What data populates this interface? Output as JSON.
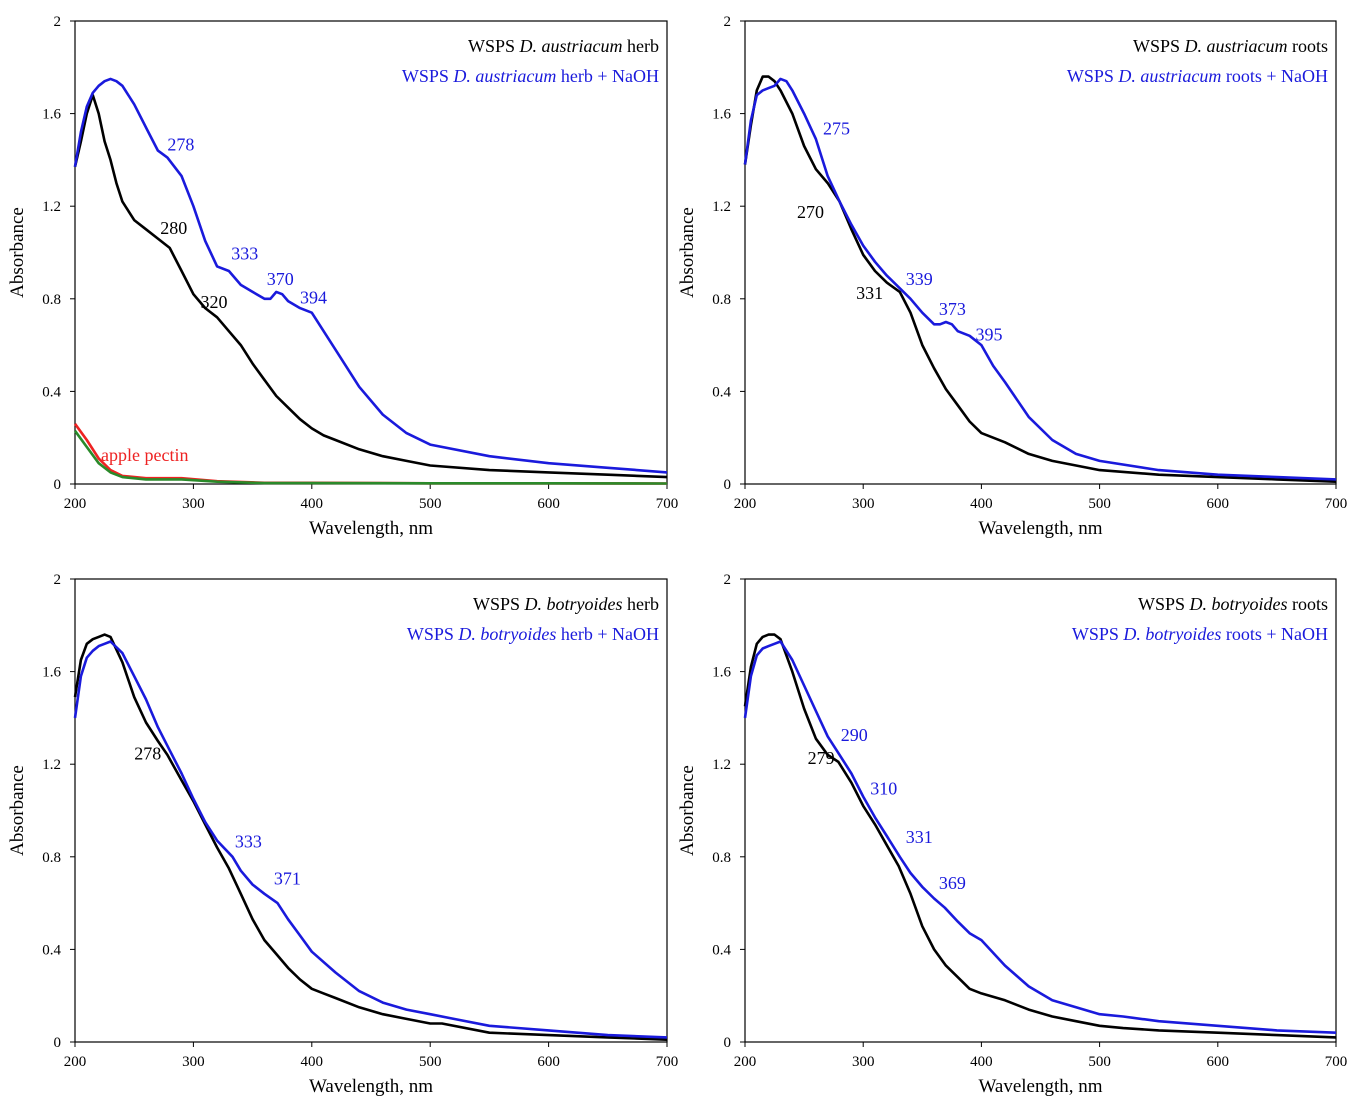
{
  "chart_data": [
    {
      "type": "line",
      "xlabel": "Wavelength, nm",
      "ylabel": "Absorbance",
      "xlim": [
        200,
        700
      ],
      "ylim": [
        0,
        2
      ],
      "xticks": [
        "200",
        "300",
        "400",
        "500",
        "600",
        "700"
      ],
      "yticks": [
        "0",
        "0.4",
        "0.8",
        "1.2",
        "1.6",
        "2"
      ],
      "legend": {
        "placement": "top-right",
        "entries": [
          {
            "prefix": "WSPS ",
            "italic": "D. austriacum",
            "suffix": " herb",
            "color": "#000000"
          },
          {
            "prefix": "WSPS ",
            "italic": "D. austriacum",
            "suffix": " herb + NaOH",
            "color": "#1a1adc"
          }
        ]
      },
      "series": [
        {
          "name": "WSPS D. austriacum herb",
          "color": "#000000",
          "x": [
            200,
            205,
            210,
            215,
            220,
            225,
            230,
            235,
            240,
            250,
            260,
            270,
            280,
            290,
            300,
            310,
            320,
            330,
            340,
            350,
            360,
            370,
            380,
            390,
            400,
            410,
            420,
            440,
            460,
            480,
            500,
            550,
            600,
            650,
            700
          ],
          "y": [
            1.37,
            1.48,
            1.6,
            1.68,
            1.6,
            1.48,
            1.4,
            1.3,
            1.22,
            1.14,
            1.1,
            1.06,
            1.02,
            0.92,
            0.82,
            0.76,
            0.72,
            0.66,
            0.6,
            0.52,
            0.45,
            0.38,
            0.33,
            0.28,
            0.24,
            0.21,
            0.19,
            0.15,
            0.12,
            0.1,
            0.08,
            0.06,
            0.05,
            0.04,
            0.03
          ]
        },
        {
          "name": "WSPS D. austriacum herb + NaOH",
          "color": "#1a1adc",
          "x": [
            200,
            205,
            210,
            215,
            220,
            225,
            230,
            235,
            240,
            250,
            260,
            270,
            278,
            290,
            300,
            310,
            320,
            330,
            340,
            350,
            360,
            365,
            370,
            375,
            380,
            390,
            400,
            420,
            440,
            460,
            480,
            500,
            550,
            600,
            650,
            700
          ],
          "y": [
            1.37,
            1.52,
            1.63,
            1.69,
            1.72,
            1.74,
            1.75,
            1.74,
            1.72,
            1.64,
            1.54,
            1.44,
            1.41,
            1.33,
            1.2,
            1.05,
            0.94,
            0.92,
            0.86,
            0.83,
            0.8,
            0.8,
            0.83,
            0.82,
            0.79,
            0.76,
            0.74,
            0.58,
            0.42,
            0.3,
            0.22,
            0.17,
            0.12,
            0.09,
            0.07,
            0.05
          ]
        },
        {
          "name": "apple pectin",
          "color": "#ee2222",
          "x": [
            200,
            210,
            220,
            230,
            240,
            260,
            290,
            320,
            360,
            400,
            500,
            600,
            700
          ],
          "y": [
            0.26,
            0.19,
            0.11,
            0.06,
            0.035,
            0.025,
            0.025,
            0.012,
            0.005,
            0.005,
            0.003,
            0.003,
            0.002
          ]
        },
        {
          "name": "",
          "color": "#2a8a2a",
          "x": [
            200,
            210,
            220,
            230,
            240,
            260,
            290,
            320,
            360,
            400,
            500,
            600,
            700
          ],
          "y": [
            0.23,
            0.16,
            0.09,
            0.05,
            0.03,
            0.02,
            0.02,
            0.01,
            0.004,
            0.004,
            0.003,
            0.003,
            0.002
          ]
        }
      ],
      "annotations": [
        {
          "text": "apple pectin",
          "x": 222,
          "y": 0.1,
          "color": "#ee2222"
        },
        {
          "text": "278",
          "x": 278,
          "y": 1.44,
          "color": "#1a1adc"
        },
        {
          "text": "280",
          "x": 272,
          "y": 1.08,
          "color": "#000000"
        },
        {
          "text": "333",
          "x": 332,
          "y": 0.97,
          "color": "#1a1adc"
        },
        {
          "text": "370",
          "x": 362,
          "y": 0.86,
          "color": "#1a1adc"
        },
        {
          "text": "320",
          "x": 306,
          "y": 0.76,
          "color": "#000000"
        },
        {
          "text": "394",
          "x": 390,
          "y": 0.78,
          "color": "#1a1adc"
        }
      ]
    },
    {
      "type": "line",
      "xlabel": "Wavelength, nm",
      "ylabel": "Absorbance",
      "xlim": [
        200,
        700
      ],
      "ylim": [
        0,
        2
      ],
      "xticks": [
        "200",
        "300",
        "400",
        "500",
        "600",
        "700"
      ],
      "yticks": [
        "0",
        "0.4",
        "0.8",
        "1.2",
        "1.6",
        "2"
      ],
      "legend": {
        "placement": "top-right",
        "entries": [
          {
            "prefix": "WSPS ",
            "italic": "D. austriacum",
            "suffix": " roots",
            "color": "#000000"
          },
          {
            "prefix": "WSPS ",
            "italic": "D. austriacum",
            "suffix": " roots + NaOH",
            "color": "#1a1adc"
          }
        ]
      },
      "series": [
        {
          "name": "WSPS D. austriacum roots",
          "color": "#000000",
          "x": [
            200,
            205,
            210,
            215,
            220,
            225,
            230,
            240,
            250,
            260,
            270,
            280,
            290,
            300,
            310,
            320,
            331,
            340,
            350,
            360,
            370,
            380,
            390,
            400,
            410,
            420,
            440,
            460,
            480,
            500,
            550,
            600,
            650,
            700
          ],
          "y": [
            1.38,
            1.55,
            1.7,
            1.76,
            1.76,
            1.74,
            1.7,
            1.6,
            1.46,
            1.36,
            1.3,
            1.22,
            1.1,
            0.99,
            0.92,
            0.87,
            0.83,
            0.74,
            0.6,
            0.5,
            0.41,
            0.34,
            0.27,
            0.22,
            0.2,
            0.18,
            0.13,
            0.1,
            0.08,
            0.06,
            0.04,
            0.03,
            0.02,
            0.01
          ]
        },
        {
          "name": "WSPS D. austriacum roots + NaOH",
          "color": "#1a1adc",
          "x": [
            200,
            205,
            210,
            215,
            220,
            225,
            230,
            235,
            240,
            250,
            260,
            270,
            280,
            290,
            300,
            310,
            320,
            330,
            340,
            350,
            360,
            365,
            370,
            375,
            380,
            390,
            400,
            410,
            420,
            440,
            460,
            480,
            500,
            550,
            600,
            650,
            700
          ],
          "y": [
            1.38,
            1.57,
            1.68,
            1.7,
            1.71,
            1.72,
            1.75,
            1.74,
            1.7,
            1.6,
            1.49,
            1.33,
            1.22,
            1.12,
            1.03,
            0.96,
            0.9,
            0.85,
            0.8,
            0.74,
            0.69,
            0.69,
            0.7,
            0.69,
            0.66,
            0.64,
            0.6,
            0.51,
            0.44,
            0.29,
            0.19,
            0.13,
            0.1,
            0.06,
            0.04,
            0.03,
            0.02
          ]
        }
      ],
      "annotations": [
        {
          "text": "275",
          "x": 266,
          "y": 1.51,
          "color": "#1a1adc"
        },
        {
          "text": "270",
          "x": 244,
          "y": 1.15,
          "color": "#000000"
        },
        {
          "text": "339",
          "x": 336,
          "y": 0.86,
          "color": "#1a1adc"
        },
        {
          "text": "331",
          "x": 294,
          "y": 0.8,
          "color": "#000000"
        },
        {
          "text": "373",
          "x": 364,
          "y": 0.73,
          "color": "#1a1adc"
        },
        {
          "text": "395",
          "x": 395,
          "y": 0.62,
          "color": "#1a1adc"
        }
      ]
    },
    {
      "type": "line",
      "xlabel": "Wavelength, nm",
      "ylabel": "Absorbance",
      "xlim": [
        200,
        700
      ],
      "ylim": [
        0,
        2
      ],
      "xticks": [
        "200",
        "300",
        "400",
        "500",
        "600",
        "700"
      ],
      "yticks": [
        "0",
        "0.4",
        "0.8",
        "1.2",
        "1.6",
        "2"
      ],
      "legend": {
        "placement": "top-right",
        "entries": [
          {
            "prefix": "WSPS ",
            "italic": "D. botryoides",
            "suffix": " herb",
            "color": "#000000"
          },
          {
            "prefix": "WSPS ",
            "italic": "D. botryoides",
            "suffix": " herb + NaOH",
            "color": "#1a1adc"
          }
        ]
      },
      "series": [
        {
          "name": "WSPS D. botryoides herb",
          "color": "#000000",
          "x": [
            200,
            205,
            210,
            215,
            220,
            225,
            230,
            240,
            250,
            260,
            270,
            278,
            290,
            300,
            310,
            320,
            330,
            340,
            350,
            360,
            370,
            380,
            390,
            400,
            410,
            420,
            440,
            460,
            480,
            500,
            510,
            550,
            600,
            650,
            700
          ],
          "y": [
            1.49,
            1.65,
            1.72,
            1.74,
            1.75,
            1.76,
            1.75,
            1.64,
            1.49,
            1.38,
            1.3,
            1.24,
            1.13,
            1.04,
            0.94,
            0.84,
            0.75,
            0.64,
            0.53,
            0.44,
            0.38,
            0.32,
            0.27,
            0.23,
            0.21,
            0.19,
            0.15,
            0.12,
            0.1,
            0.08,
            0.08,
            0.04,
            0.03,
            0.02,
            0.01
          ]
        },
        {
          "name": "WSPS D. botryoides herb + NaOH",
          "color": "#1a1adc",
          "x": [
            200,
            205,
            210,
            215,
            220,
            225,
            230,
            240,
            250,
            260,
            270,
            280,
            290,
            300,
            310,
            320,
            333,
            340,
            350,
            360,
            371,
            380,
            390,
            400,
            420,
            440,
            460,
            480,
            500,
            520,
            550,
            600,
            650,
            700
          ],
          "y": [
            1.4,
            1.58,
            1.66,
            1.69,
            1.71,
            1.72,
            1.73,
            1.68,
            1.58,
            1.48,
            1.36,
            1.26,
            1.16,
            1.05,
            0.95,
            0.87,
            0.8,
            0.74,
            0.68,
            0.64,
            0.6,
            0.53,
            0.46,
            0.39,
            0.3,
            0.22,
            0.17,
            0.14,
            0.12,
            0.1,
            0.07,
            0.05,
            0.03,
            0.02
          ]
        }
      ],
      "annotations": [
        {
          "text": "278",
          "x": 250,
          "y": 1.22,
          "color": "#000000"
        },
        {
          "text": "333",
          "x": 335,
          "y": 0.84,
          "color": "#1a1adc"
        },
        {
          "text": "371",
          "x": 368,
          "y": 0.68,
          "color": "#1a1adc"
        }
      ]
    },
    {
      "type": "line",
      "xlabel": "Wavelength, nm",
      "ylabel": "Absorbance",
      "xlim": [
        200,
        700
      ],
      "ylim": [
        0,
        2
      ],
      "xticks": [
        "200",
        "300",
        "400",
        "500",
        "600",
        "700"
      ],
      "yticks": [
        "0",
        "0.4",
        "0.8",
        "1.2",
        "1.6",
        "2"
      ],
      "legend": {
        "placement": "top-right",
        "entries": [
          {
            "prefix": "WSPS ",
            "italic": "D. botryoides",
            "suffix": " roots",
            "color": "#000000"
          },
          {
            "prefix": "WSPS ",
            "italic": "D. botryoides",
            "suffix": " roots + NaOH",
            "color": "#1a1adc"
          }
        ]
      },
      "series": [
        {
          "name": "WSPS D. botryoides roots",
          "color": "#000000",
          "x": [
            200,
            205,
            210,
            215,
            220,
            225,
            230,
            240,
            250,
            260,
            270,
            279,
            290,
            300,
            310,
            320,
            330,
            340,
            350,
            360,
            370,
            380,
            390,
            400,
            420,
            440,
            460,
            480,
            500,
            520,
            550,
            600,
            650,
            700
          ],
          "y": [
            1.45,
            1.62,
            1.72,
            1.75,
            1.76,
            1.76,
            1.74,
            1.6,
            1.44,
            1.31,
            1.24,
            1.21,
            1.12,
            1.02,
            0.94,
            0.85,
            0.76,
            0.64,
            0.5,
            0.4,
            0.33,
            0.28,
            0.23,
            0.21,
            0.18,
            0.14,
            0.11,
            0.09,
            0.07,
            0.06,
            0.05,
            0.04,
            0.03,
            0.02
          ]
        },
        {
          "name": "WSPS D. botryoides roots + NaOH",
          "color": "#1a1adc",
          "x": [
            200,
            205,
            210,
            215,
            220,
            225,
            230,
            240,
            250,
            260,
            270,
            280,
            290,
            300,
            310,
            320,
            331,
            340,
            350,
            360,
            369,
            380,
            390,
            400,
            420,
            440,
            460,
            480,
            500,
            520,
            550,
            600,
            650,
            700
          ],
          "y": [
            1.4,
            1.58,
            1.67,
            1.7,
            1.71,
            1.72,
            1.73,
            1.65,
            1.54,
            1.43,
            1.32,
            1.24,
            1.16,
            1.06,
            0.97,
            0.89,
            0.8,
            0.73,
            0.67,
            0.62,
            0.58,
            0.52,
            0.47,
            0.44,
            0.33,
            0.24,
            0.18,
            0.15,
            0.12,
            0.11,
            0.09,
            0.07,
            0.05,
            0.04
          ]
        }
      ],
      "annotations": [
        {
          "text": "290",
          "x": 281,
          "y": 1.3,
          "color": "#1a1adc"
        },
        {
          "text": "279",
          "x": 253,
          "y": 1.2,
          "color": "#000000"
        },
        {
          "text": "310",
          "x": 306,
          "y": 1.07,
          "color": "#1a1adc"
        },
        {
          "text": "331",
          "x": 336,
          "y": 0.86,
          "color": "#1a1adc"
        },
        {
          "text": "369",
          "x": 364,
          "y": 0.66,
          "color": "#1a1adc"
        }
      ]
    }
  ]
}
